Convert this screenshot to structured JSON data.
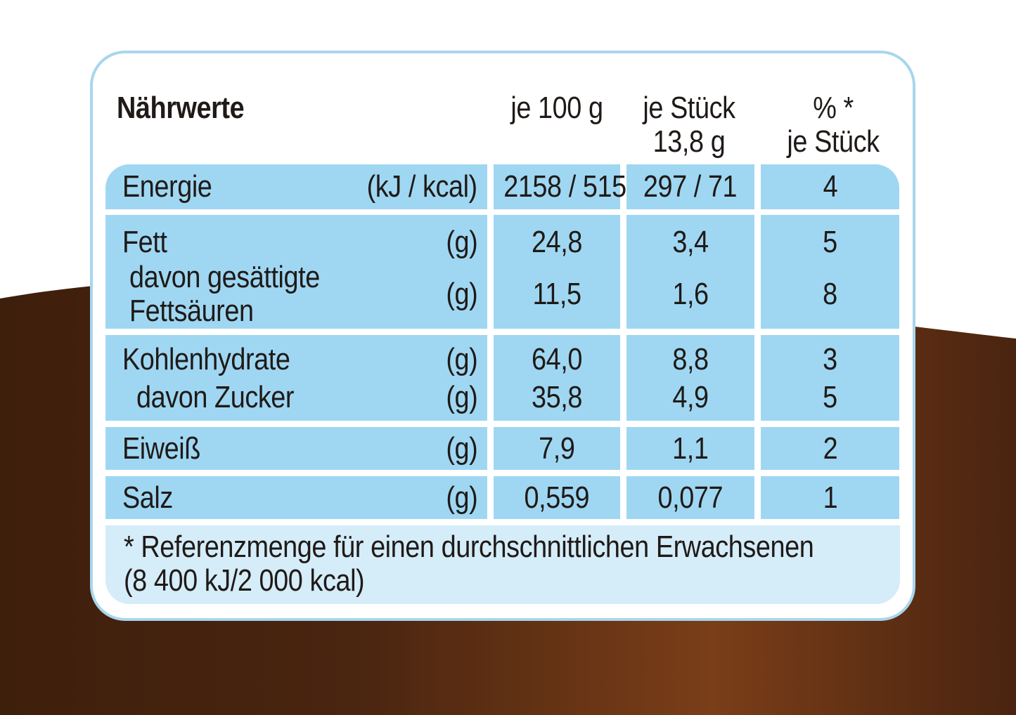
{
  "header": {
    "title": "Nährwerte",
    "col_100g": "je 100 g",
    "col_piece_line1": "je Stück",
    "col_piece_line2": "13,8 g",
    "col_pct_line1": "% *",
    "col_pct_line2": "je Stück"
  },
  "rows": {
    "energie": {
      "label": "Energie",
      "unit": "(kJ / kcal)",
      "per100": "2158 / 515",
      "piece": "297 / 71",
      "pct": "4"
    },
    "fett": {
      "label": "Fett",
      "unit": "(g)",
      "per100": "24,8",
      "piece": "3,4",
      "pct": "5"
    },
    "saettigte": {
      "label_line1": "davon gesättigte",
      "label_line2": "Fettsäuren",
      "unit": "(g)",
      "per100": "11,5",
      "piece": "1,6",
      "pct": "8"
    },
    "kohlenhydrate": {
      "label": "Kohlenhydrate",
      "unit": "(g)",
      "per100": "64,0",
      "piece": "8,8",
      "pct": "3"
    },
    "zucker": {
      "label": "davon Zucker",
      "unit": "(g)",
      "per100": "35,8",
      "piece": "4,9",
      "pct": "5"
    },
    "eiweiss": {
      "label": "Eiweiß",
      "unit": "(g)",
      "per100": "7,9",
      "piece": "1,1",
      "pct": "2"
    },
    "salz": {
      "label": "Salz",
      "unit": "(g)",
      "per100": "0,559",
      "piece": "0,077",
      "pct": "1"
    }
  },
  "footnote": {
    "line1": "* Referenzmenge für einen durchschnittlichen Erwachsenen",
    "line2": "(8 400 kJ/2 000 kcal)"
  },
  "colors": {
    "cell_blue": "#9fd7f3",
    "footnote_blue": "#d5ecf9",
    "border_blue": "#a8d6ee",
    "chocolate": "#5a2f14"
  }
}
